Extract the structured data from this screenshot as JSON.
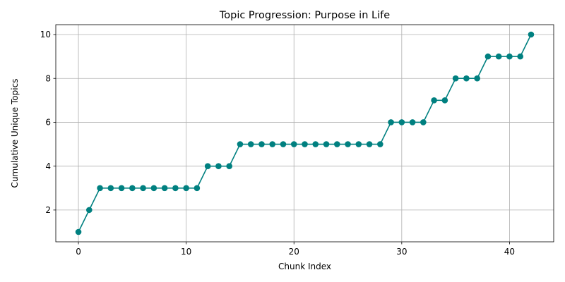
{
  "chart_data": {
    "type": "line",
    "title": "Topic Progression: Purpose in Life",
    "xlabel": "Chunk Index",
    "ylabel": "Cumulative Unique Topics",
    "xlim": [
      -2.1,
      44.1
    ],
    "ylim": [
      0.55,
      10.45
    ],
    "xticks": [
      0,
      10,
      20,
      30,
      40
    ],
    "yticks": [
      2,
      4,
      6,
      8,
      10
    ],
    "grid": true,
    "marker": "circle",
    "color": "#008080",
    "x": [
      0,
      1,
      2,
      3,
      4,
      5,
      6,
      7,
      8,
      9,
      10,
      11,
      12,
      13,
      14,
      15,
      16,
      17,
      18,
      19,
      20,
      21,
      22,
      23,
      24,
      25,
      26,
      27,
      28,
      29,
      30,
      31,
      32,
      33,
      34,
      35,
      36,
      37,
      38,
      39,
      40,
      41,
      42
    ],
    "y": [
      1,
      2,
      3,
      3,
      3,
      3,
      3,
      3,
      3,
      3,
      3,
      3,
      4,
      4,
      4,
      5,
      5,
      5,
      5,
      5,
      5,
      5,
      5,
      5,
      5,
      5,
      5,
      5,
      5,
      6,
      6,
      6,
      6,
      7,
      7,
      8,
      8,
      8,
      9,
      9,
      9,
      9,
      10
    ]
  }
}
